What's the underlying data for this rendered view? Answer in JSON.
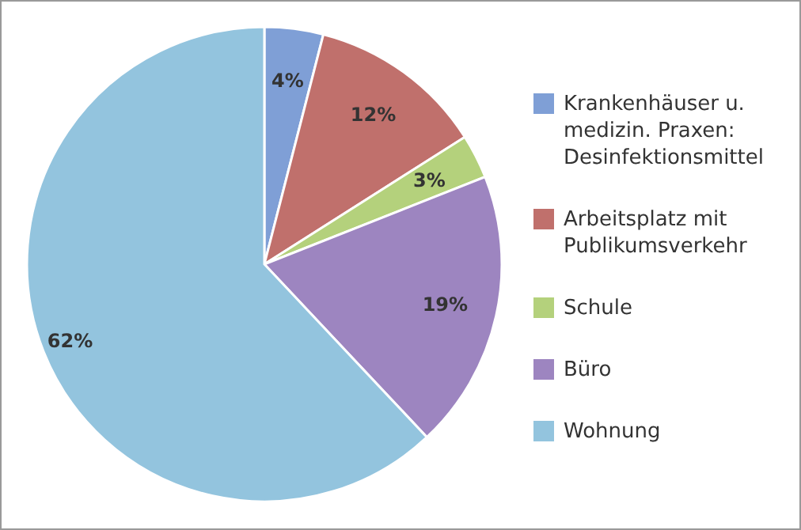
{
  "chart_data": {
    "type": "pie",
    "categories": [
      "Krankenhäuser u. medizin. Praxen: Desinfektionsmittel",
      "Arbeitsplatz mit Publikumsverkehr",
      "Schule",
      "Büro",
      "Wohnung"
    ],
    "values": [
      4,
      12,
      3,
      19,
      62
    ],
    "colors": [
      "#7f9fd6",
      "#c0706c",
      "#b4d17c",
      "#9d85c0",
      "#93c4de"
    ],
    "value_labels": [
      "4%",
      "12%",
      "3%",
      "19%",
      "62%"
    ],
    "legend": "right"
  }
}
